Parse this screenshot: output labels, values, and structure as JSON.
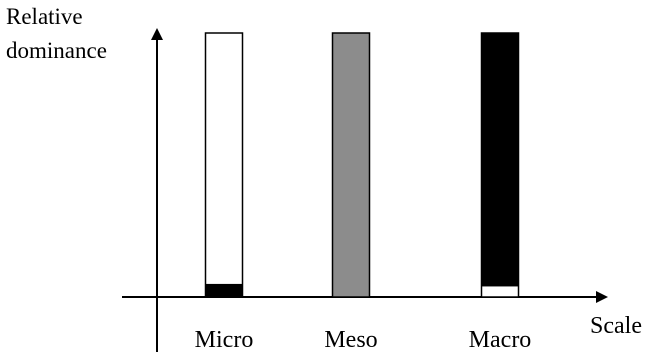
{
  "chart_data": {
    "type": "bar",
    "title": "",
    "ylabel_lines": [
      "Relative",
      "dominance"
    ],
    "xlabel": "Scale",
    "categories": [
      "Micro",
      "Meso",
      "Macro"
    ],
    "bar_height": 1.0,
    "bars": [
      {
        "category": "Micro",
        "stack": [
          {
            "value": 0.05,
            "color": "#000000"
          },
          {
            "value": 0.95,
            "color": "#ffffff"
          }
        ]
      },
      {
        "category": "Meso",
        "stack": [
          {
            "value": 1.0,
            "color": "#8c8c8c"
          }
        ]
      },
      {
        "category": "Macro",
        "stack": [
          {
            "value": 0.04,
            "color": "#ffffff"
          },
          {
            "value": 0.96,
            "color": "#000000"
          }
        ]
      }
    ],
    "ylim": [
      0,
      1.0
    ],
    "grid": false,
    "legend": "none",
    "colors": {
      "outline": "#000000",
      "axis": "#000000"
    }
  }
}
